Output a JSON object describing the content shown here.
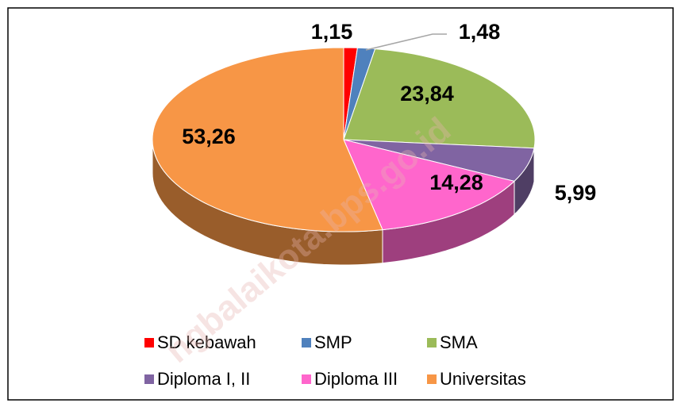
{
  "chart_data": {
    "type": "pie3d",
    "categories": [
      "SD kebawah",
      "SMP",
      "SMA",
      "Diploma I, II",
      "Diploma III",
      "Universitas"
    ],
    "values": [
      1.15,
      1.48,
      23.84,
      5.99,
      14.28,
      53.26
    ],
    "value_labels": [
      "1,15",
      "1,48",
      "23,84",
      "5,99",
      "14,28",
      "53,26"
    ],
    "colors": [
      "#ff0000",
      "#4f81bd",
      "#9bbb59",
      "#8064a2",
      "#ff66cc",
      "#f79646"
    ],
    "legend": "bottom",
    "watermark": "ngbalaikota.bps.go.id"
  }
}
